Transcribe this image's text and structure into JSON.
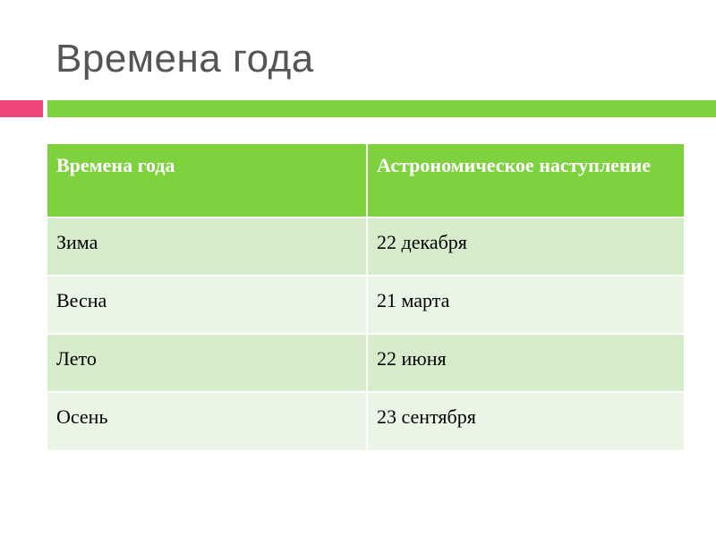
{
  "slide": {
    "title": "Времена года"
  },
  "colors": {
    "header_bg": "#7ed23e",
    "row_odd_bg": "#d6ecca",
    "row_even_bg": "#ebf5e5",
    "accent_pink": "#f0457b",
    "accent_green": "#7ed23e",
    "title_color": "#555555"
  },
  "table": {
    "headers": [
      "Времена года",
      "Астрономическое наступление"
    ],
    "rows": [
      [
        "Зима",
        "22 декабря"
      ],
      [
        "Весна",
        "21 марта"
      ],
      [
        "Лето",
        "22 июня"
      ],
      [
        "Осень",
        "23 сентября"
      ]
    ]
  }
}
